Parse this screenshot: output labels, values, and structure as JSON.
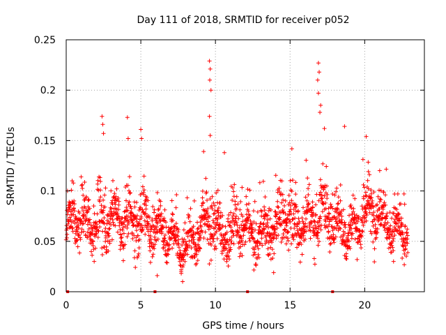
{
  "chart_data": {
    "type": "scatter",
    "title": "Day 111 of 2018, SRMTID for receiver p052",
    "xlabel": "GPS time / hours",
    "ylabel": "SRMTID / TECUs",
    "xlim": [
      0,
      24
    ],
    "ylim": [
      0,
      0.25
    ],
    "xticks": [
      0,
      5,
      10,
      15,
      20
    ],
    "xtick_labels": [
      "0",
      "5",
      "10",
      "15",
      "20"
    ],
    "yticks": [
      0,
      0.05,
      0.1,
      0.15,
      0.2,
      0.25
    ],
    "ytick_labels": [
      "0",
      "0.05",
      "0.1",
      "0.15",
      "0.2",
      "0.25"
    ],
    "grid": true,
    "marker": "plus",
    "series_color": "#ff0000",
    "grid_color": "#a0a0a0",
    "baseline_markers_x": [
      0.1,
      5.95,
      12.15,
      17.85
    ],
    "highlights": [
      {
        "x": 9.6,
        "y": 0.229
      },
      {
        "x": 9.65,
        "y": 0.221
      },
      {
        "x": 9.62,
        "y": 0.21
      },
      {
        "x": 9.7,
        "y": 0.2
      },
      {
        "x": 9.6,
        "y": 0.174
      },
      {
        "x": 16.9,
        "y": 0.227
      },
      {
        "x": 16.95,
        "y": 0.218
      },
      {
        "x": 16.85,
        "y": 0.21
      },
      {
        "x": 16.9,
        "y": 0.197
      },
      {
        "x": 17.05,
        "y": 0.185
      },
      {
        "x": 17.0,
        "y": 0.178
      },
      {
        "x": 2.4,
        "y": 0.174
      },
      {
        "x": 2.45,
        "y": 0.166
      },
      {
        "x": 2.5,
        "y": 0.157
      },
      {
        "x": 4.1,
        "y": 0.173
      },
      {
        "x": 4.15,
        "y": 0.152
      },
      {
        "x": 5.0,
        "y": 0.161
      },
      {
        "x": 5.05,
        "y": 0.152
      },
      {
        "x": 18.65,
        "y": 0.164
      },
      {
        "x": 20.1,
        "y": 0.154
      },
      {
        "x": 9.65,
        "y": 0.155
      },
      {
        "x": 10.6,
        "y": 0.138
      },
      {
        "x": 17.3,
        "y": 0.162
      },
      {
        "x": 0.4,
        "y": 0.11
      },
      {
        "x": 7.7,
        "y": 0.02
      },
      {
        "x": 7.8,
        "y": 0.01
      },
      {
        "x": 6.1,
        "y": 0.016
      },
      {
        "x": 13.9,
        "y": 0.019
      }
    ],
    "envelope": [
      {
        "t": 0.0,
        "base": 0.055,
        "spread": 0.018
      },
      {
        "t": 0.8,
        "base": 0.07,
        "spread": 0.022
      },
      {
        "t": 1.5,
        "base": 0.075,
        "spread": 0.025
      },
      {
        "t": 2.4,
        "base": 0.07,
        "spread": 0.03
      },
      {
        "t": 3.2,
        "base": 0.065,
        "spread": 0.022
      },
      {
        "t": 4.2,
        "base": 0.07,
        "spread": 0.03
      },
      {
        "t": 5.2,
        "base": 0.08,
        "spread": 0.028
      },
      {
        "t": 6.0,
        "base": 0.055,
        "spread": 0.02
      },
      {
        "t": 7.0,
        "base": 0.055,
        "spread": 0.02
      },
      {
        "t": 8.0,
        "base": 0.05,
        "spread": 0.018
      },
      {
        "t": 9.0,
        "base": 0.055,
        "spread": 0.02
      },
      {
        "t": 9.7,
        "base": 0.07,
        "spread": 0.03
      },
      {
        "t": 10.5,
        "base": 0.06,
        "spread": 0.022
      },
      {
        "t": 11.5,
        "base": 0.065,
        "spread": 0.024
      },
      {
        "t": 12.5,
        "base": 0.05,
        "spread": 0.018
      },
      {
        "t": 13.5,
        "base": 0.065,
        "spread": 0.024
      },
      {
        "t": 14.5,
        "base": 0.075,
        "spread": 0.025
      },
      {
        "t": 15.5,
        "base": 0.06,
        "spread": 0.025
      },
      {
        "t": 16.5,
        "base": 0.08,
        "spread": 0.028
      },
      {
        "t": 17.2,
        "base": 0.085,
        "spread": 0.03
      },
      {
        "t": 18.0,
        "base": 0.065,
        "spread": 0.025
      },
      {
        "t": 19.0,
        "base": 0.06,
        "spread": 0.022
      },
      {
        "t": 20.0,
        "base": 0.085,
        "spread": 0.025
      },
      {
        "t": 21.0,
        "base": 0.075,
        "spread": 0.025
      },
      {
        "t": 21.8,
        "base": 0.06,
        "spread": 0.02
      },
      {
        "t": 22.9,
        "base": 0.065,
        "spread": 0.022
      }
    ],
    "sample_range": [
      0.0,
      22.9
    ],
    "sample_count": 1900
  }
}
